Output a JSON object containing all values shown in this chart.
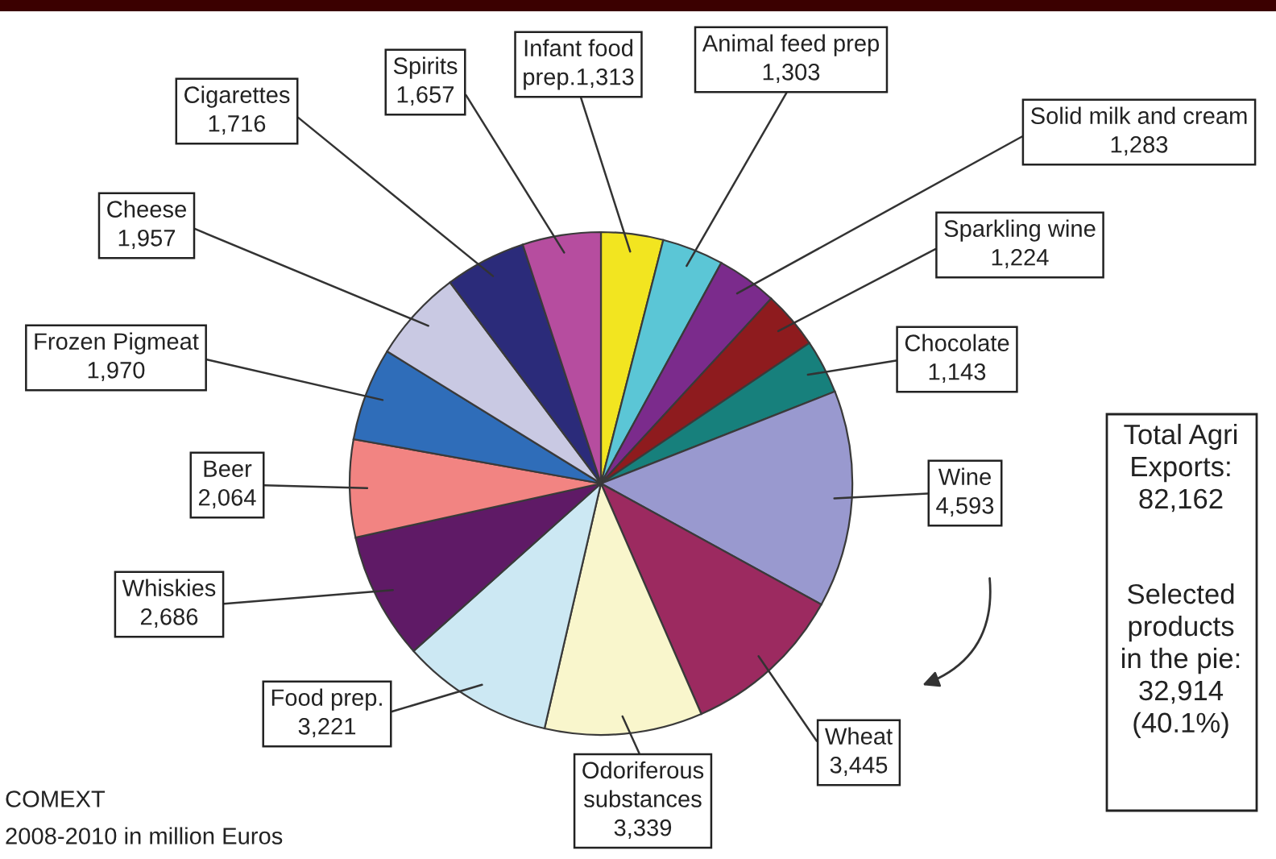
{
  "chart_data": {
    "type": "pie",
    "categories": [
      "Infant food prep.",
      "Animal feed prep",
      "Solid milk and cream",
      "Sparkling wine",
      "Chocolate",
      "Wine",
      "Wheat",
      "Odoriferous substances",
      "Food prep.",
      "Whiskies",
      "Beer",
      "Frozen Pigmeat",
      "Cheese",
      "Cigarettes",
      "Spirits"
    ],
    "values": [
      1313,
      1303,
      1283,
      1224,
      1143,
      4593,
      3445,
      3339,
      3221,
      2686,
      2064,
      1970,
      1957,
      1716,
      1657
    ],
    "value_labels": [
      "1,313",
      "1,303",
      "1,283",
      "1,224",
      "1,143",
      "4,593",
      "3,445",
      "3,339",
      "3,221",
      "2,686",
      "2,064",
      "1,970",
      "1,957",
      "1,716",
      "1,657"
    ],
    "colors": [
      "#f2e520",
      "#5bc6d6",
      "#7b2b8c",
      "#8e1b1e",
      "#17807c",
      "#9999cf",
      "#9c2a60",
      "#f9f6cc",
      "#cce8f3",
      "#5f1a66",
      "#f28482",
      "#2f6db9",
      "#c9c9e3",
      "#2b2b7a",
      "#b64d9f"
    ],
    "annotations": [
      "Total Agri\nExports:\n82,162",
      "Selected\nproducts\nin the pie:\n32,914\n(40.1%)",
      "COMEXT",
      "2008-2010 in million Euros"
    ]
  }
}
